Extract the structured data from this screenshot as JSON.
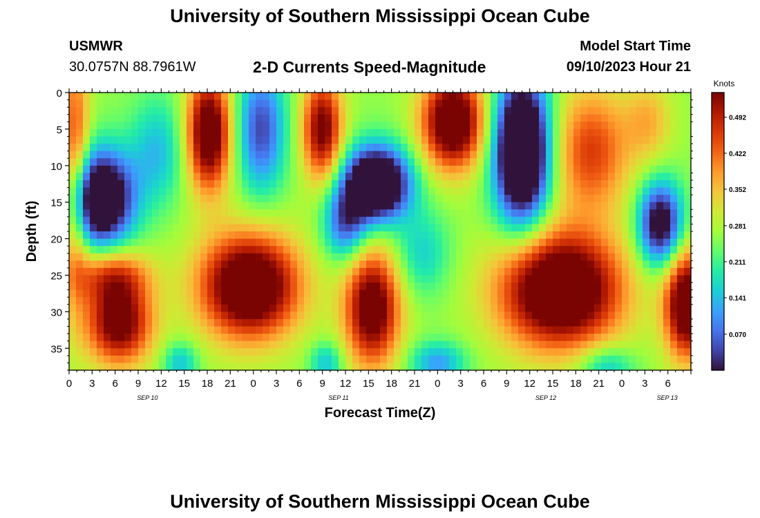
{
  "header": {
    "title": "University of Southern Mississippi Ocean Cube",
    "station": "USMWR",
    "coordinates": "30.0757N  88.7961W",
    "plot_title": "2-D Currents Speed-Magnitude",
    "model_start_label": "Model Start Time",
    "model_start_value": "09/10/2023 Hour 21"
  },
  "footer": {
    "title": "University of Southern Mississippi Ocean Cube"
  },
  "chart_data": {
    "type": "heatmap",
    "title": "2-D Currents Speed-Magnitude",
    "xlabel": "Forecast Time(Z)",
    "ylabel": "Depth (ft)",
    "colorbar_label": "Knots",
    "x_hours_range": [
      0,
      81
    ],
    "ylim": [
      0,
      38
    ],
    "y_inverted": true,
    "x_tick_labels": [
      "0",
      "3",
      "6",
      "9",
      "12",
      "15",
      "18",
      "21",
      "0",
      "3",
      "6",
      "9",
      "12",
      "15",
      "18",
      "21",
      "0",
      "3",
      "6",
      "9",
      "12",
      "15",
      "18",
      "21",
      "0",
      "3",
      "6"
    ],
    "y_ticks": [
      0,
      5,
      10,
      15,
      20,
      25,
      30,
      35
    ],
    "date_labels": [
      {
        "label": "SEP 10",
        "hour": 10.2
      },
      {
        "label": "SEP 11",
        "hour": 35.1
      },
      {
        "label": "SEP 12",
        "hour": 62.1
      },
      {
        "label": "SEP 13",
        "hour": 77.9
      }
    ],
    "colorbar_ticks": [
      "0.492",
      "0.422",
      "0.352",
      "0.281",
      "0.211",
      "0.141",
      "0.070"
    ],
    "colorbar_range": [
      0.0,
      0.54
    ],
    "colormap": [
      "#30123b",
      "#4145ab",
      "#4675ed",
      "#39a2fc",
      "#1bcfd4",
      "#24eca6",
      "#61fc6c",
      "#a4fc3b",
      "#d1e834",
      "#f3c63a",
      "#fe9b2d",
      "#f36315",
      "#d93806",
      "#b11901",
      "#7a0402"
    ],
    "field_blobs": [
      {
        "hour": 4,
        "depth": 14.5,
        "sx": 3.0,
        "sy": 4.5,
        "amp": -0.42
      },
      {
        "hour": 6.5,
        "depth": 31.5,
        "sx": 3.0,
        "sy": 4.0,
        "amp": 0.32
      },
      {
        "hour": 5.5,
        "depth": 25.0,
        "sx": 3.5,
        "sy": 2.6,
        "amp": 0.18
      },
      {
        "hour": 0.8,
        "depth": 10.0,
        "sx": 1.3,
        "sy": 12.0,
        "amp": 0.2
      },
      {
        "hour": 11.5,
        "depth": 8.0,
        "sx": 2.5,
        "sy": 5.0,
        "amp": -0.12
      },
      {
        "hour": 18.2,
        "depth": 5.5,
        "sx": 2.0,
        "sy": 5.5,
        "amp": 0.36
      },
      {
        "hour": 23.5,
        "depth": 26.5,
        "sx": 4.5,
        "sy": 5.0,
        "amp": 0.4
      },
      {
        "hour": 25.0,
        "depth": 5.0,
        "sx": 2.2,
        "sy": 6.0,
        "amp": -0.22
      },
      {
        "hour": 14.5,
        "depth": 37.0,
        "sx": 1.6,
        "sy": 2.0,
        "amp": -0.12
      },
      {
        "hour": 33.0,
        "depth": 5.0,
        "sx": 1.8,
        "sy": 5.0,
        "amp": 0.3
      },
      {
        "hour": 40.0,
        "depth": 12.5,
        "sx": 3.0,
        "sy": 3.5,
        "amp": -0.45
      },
      {
        "hour": 36.0,
        "depth": 18.0,
        "sx": 2.0,
        "sy": 3.5,
        "amp": -0.2
      },
      {
        "hour": 39.5,
        "depth": 29.5,
        "sx": 2.5,
        "sy": 5.5,
        "amp": 0.34
      },
      {
        "hour": 33.5,
        "depth": 37.0,
        "sx": 1.5,
        "sy": 2.0,
        "amp": -0.12
      },
      {
        "hour": 50.0,
        "depth": 4.0,
        "sx": 2.8,
        "sy": 4.5,
        "amp": 0.38
      },
      {
        "hour": 46.0,
        "depth": 22.0,
        "sx": 2.5,
        "sy": 4.0,
        "amp": -0.1
      },
      {
        "hour": 59.0,
        "depth": 8.0,
        "sx": 2.5,
        "sy": 7.0,
        "amp": -0.48
      },
      {
        "hour": 68.0,
        "depth": 8.0,
        "sx": 3.5,
        "sy": 6.0,
        "amp": 0.2
      },
      {
        "hour": 64.0,
        "depth": 27.0,
        "sx": 5.5,
        "sy": 5.5,
        "amp": 0.42
      },
      {
        "hour": 77.0,
        "depth": 18.0,
        "sx": 2.0,
        "sy": 4.0,
        "amp": -0.32
      },
      {
        "hour": 80.5,
        "depth": 29.0,
        "sx": 2.0,
        "sy": 5.0,
        "amp": 0.38
      },
      {
        "hour": 75.5,
        "depth": 4.0,
        "sx": 2.2,
        "sy": 4.0,
        "amp": 0.1
      },
      {
        "hour": 48.0,
        "depth": 37.0,
        "sx": 2.5,
        "sy": 2.0,
        "amp": -0.15
      },
      {
        "hour": 70.0,
        "depth": 37.5,
        "sx": 2.5,
        "sy": 2.0,
        "amp": -0.12
      }
    ]
  }
}
